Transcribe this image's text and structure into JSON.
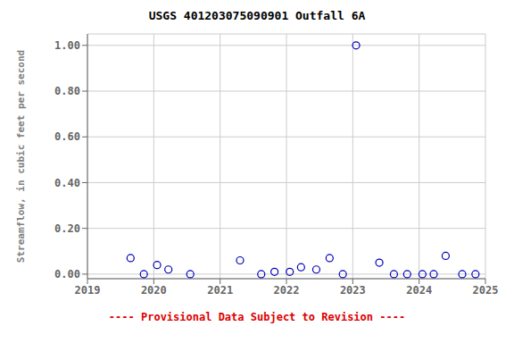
{
  "chart_data": {
    "type": "scatter",
    "title": "USGS 401203075090901 Outfall 6A",
    "ylabel": "Streamflow, in cubic feet per second",
    "x": [
      2019.65,
      2019.85,
      2020.05,
      2020.22,
      2020.55,
      2021.3,
      2021.62,
      2021.82,
      2022.05,
      2022.22,
      2022.45,
      2022.65,
      2022.85,
      2023.05,
      2023.4,
      2023.62,
      2023.82,
      2024.05,
      2024.22,
      2024.4,
      2024.65,
      2024.85
    ],
    "values": [
      0.07,
      0.0,
      0.04,
      0.02,
      0.0,
      0.06,
      0.0,
      0.01,
      0.01,
      0.03,
      0.02,
      0.07,
      0.0,
      1.0,
      0.05,
      0.0,
      0.0,
      0.0,
      0.0,
      0.08,
      0.0,
      0.0
    ],
    "color": "#0000bb",
    "marker": "circle",
    "xlim": [
      2019,
      2025
    ],
    "ylim": [
      -0.02,
      1.05
    ],
    "xticks": [
      2019,
      2020,
      2021,
      2022,
      2023,
      2024,
      2025
    ],
    "yticks": [
      {
        "value": 0,
        "label": "0.00"
      },
      {
        "value": 0.2,
        "label": "0.20"
      },
      {
        "value": 0.4,
        "label": "0.40"
      },
      {
        "value": 0.6,
        "label": "0.60"
      },
      {
        "value": 0.8,
        "label": "0.80"
      },
      {
        "value": 1.0,
        "label": "1.00"
      }
    ],
    "grid": true,
    "annotations": [
      {
        "text": "---- Provisional Data Subject to Revision ----",
        "color": "#dd0000"
      }
    ]
  }
}
